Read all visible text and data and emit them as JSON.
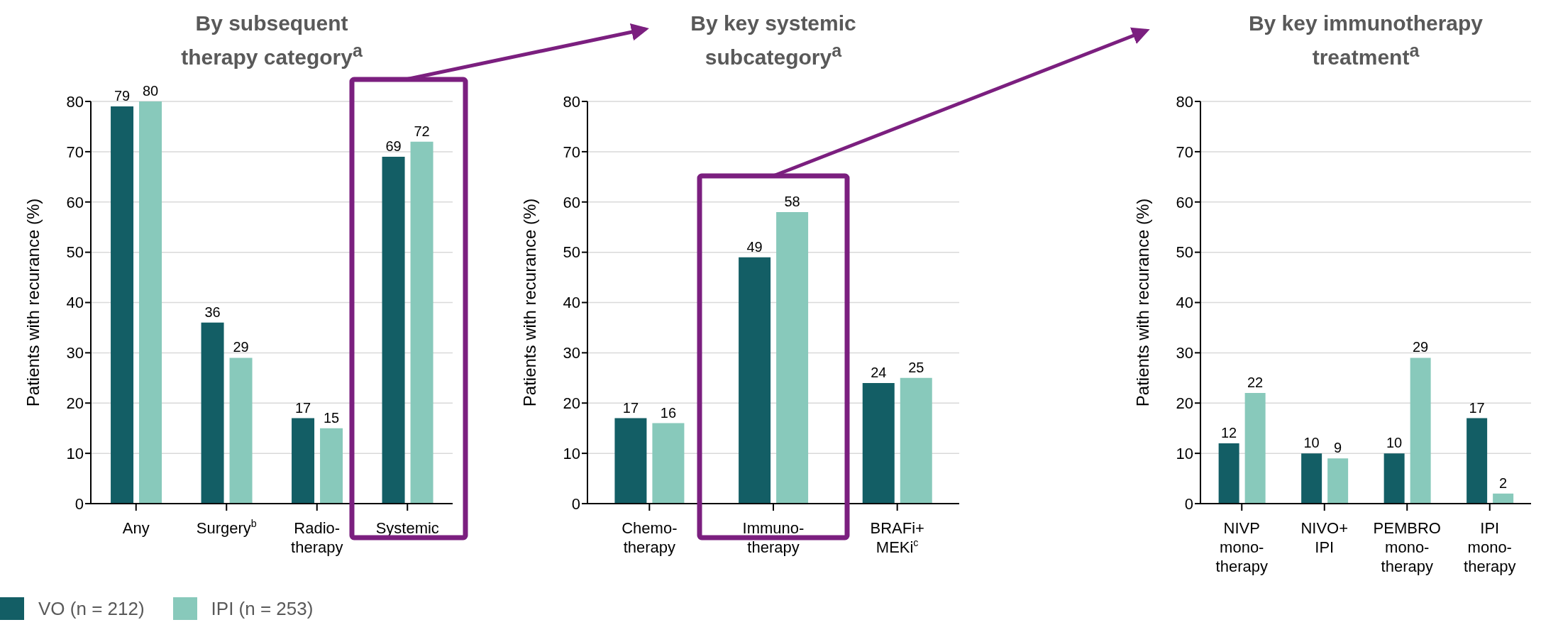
{
  "chart_data": [
    {
      "type": "bar",
      "title": "By subsequent\ntherapy category$^{a}$",
      "ylabel": "Patients with recurance (%)",
      "categories": [
        "Any",
        "Surgery$^{b}$",
        "Radio-\ntherapy",
        "Systemic"
      ],
      "series": [
        {
          "name": "VO (n = 212)",
          "color": "#135e65",
          "values": [
            79,
            36,
            17,
            69
          ]
        },
        {
          "name": "IPI (n = 253)",
          "color": "#88c9bb",
          "values": [
            80,
            29,
            15,
            72
          ]
        }
      ],
      "ylim": [
        0,
        80
      ],
      "yticks": [
        0,
        10,
        20,
        30,
        40,
        50,
        60,
        70,
        80
      ],
      "grid": "y",
      "data_labels": true,
      "legend": "bottom left"
    },
    {
      "type": "bar",
      "title": "By key systemic\nsubcategory$^{a}$",
      "ylabel": "Patients with recurance (%)",
      "categories": [
        "Chemo-\ntherapy",
        "Immuno-\ntherapy",
        "BRAFi+\nMEKi$^{c}$"
      ],
      "series": [
        {
          "color": "#135e65",
          "values": [
            17,
            49,
            24
          ]
        },
        {
          "color": "#88c9bb",
          "values": [
            16,
            58,
            25
          ]
        }
      ],
      "ylim": [
        0,
        80
      ],
      "yticks": [
        0,
        10,
        20,
        30,
        40,
        50,
        60,
        70,
        80
      ],
      "grid": "y",
      "data_labels": true
    },
    {
      "type": "bar",
      "title": "By key immunotherapy\ntreatment$^{a}$",
      "ylabel": "Patients with recurance (%)",
      "categories": [
        "NIVP\nmono-\ntherapy",
        "NIVO+\nIPI",
        "PEMBRO\nmono-\ntherapy",
        "IPI\nmono-\ntherapy"
      ],
      "series": [
        {
          "color": "#135e65",
          "values": [
            12,
            10,
            10,
            17
          ]
        },
        {
          "color": "#88c9bb",
          "values": [
            22,
            9,
            29,
            2
          ]
        }
      ],
      "ylim": [
        0,
        80
      ],
      "yticks": [
        0,
        10,
        20,
        30,
        40,
        50,
        60,
        70,
        80
      ],
      "grid": "y",
      "data_labels": true
    }
  ]
}
